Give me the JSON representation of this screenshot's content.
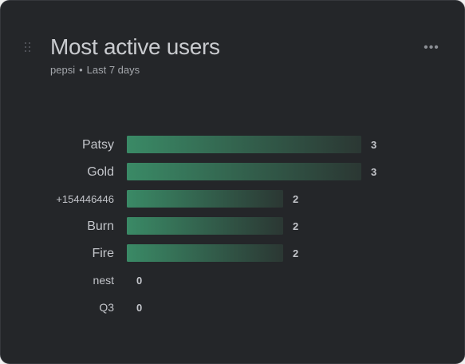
{
  "widget": {
    "title": "Most active users",
    "subtitle_project": "pepsi",
    "subtitle_separator": "•",
    "subtitle_period": "Last 7 days",
    "menu_glyph": "•••"
  },
  "colors": {
    "bar_start": "#3a8a66",
    "bar_end": "#2b3733",
    "background": "#242629"
  },
  "chart_data": {
    "type": "bar",
    "orientation": "horizontal",
    "categories": [
      "Patsy",
      "Gold",
      "+154446446",
      "Burn",
      "Fire",
      "nest",
      "Q3"
    ],
    "values": [
      3,
      3,
      2,
      2,
      2,
      0,
      0
    ],
    "xlim": [
      0,
      3
    ],
    "grid": false,
    "legend": "none"
  }
}
